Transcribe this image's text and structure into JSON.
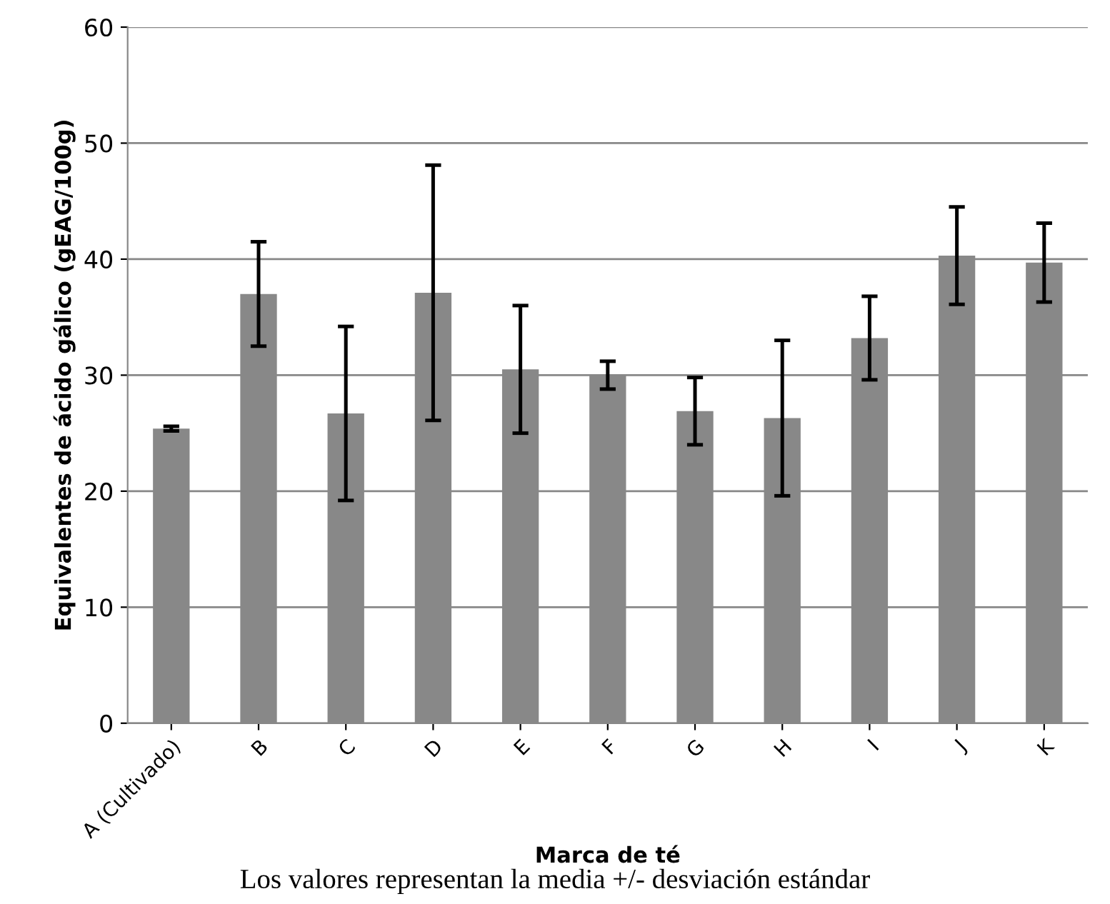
{
  "chart_data": {
    "type": "bar",
    "categories": [
      "A (Cultivado)",
      "B",
      "C",
      "D",
      "E",
      "F",
      "G",
      "H",
      "I",
      "J",
      "K"
    ],
    "values": [
      25.4,
      37.0,
      26.7,
      37.1,
      30.5,
      30.0,
      26.9,
      26.3,
      33.2,
      40.3,
      39.7
    ],
    "errors": [
      0.2,
      4.5,
      7.5,
      11,
      5.5,
      1.2,
      2.9,
      6.7,
      3.6,
      4.2,
      3.4
    ],
    "color": "#888888",
    "xlabel": "Marca de té",
    "ylabel": "Equivalentes de ácido gálico (gEAG/100g)",
    "ylim": [
      0,
      60
    ],
    "yticks": [
      0,
      10,
      20,
      30,
      40,
      50,
      60
    ],
    "grid": "y",
    "annotations": [
      "Los valores representan la media +/- desviación estándar"
    ]
  }
}
